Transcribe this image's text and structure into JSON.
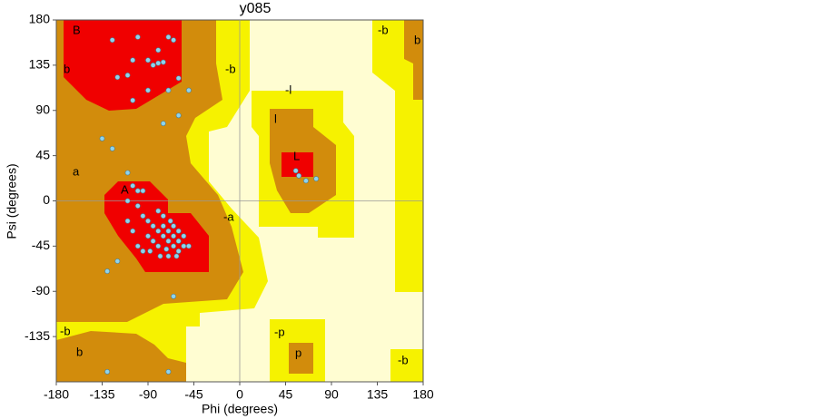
{
  "chart_data": {
    "type": "scatter",
    "title": "y085",
    "x_label": "Phi (degrees)",
    "y_label": "Psi (degrees)",
    "xlim": [
      -180,
      180
    ],
    "ylim": [
      -180,
      180
    ],
    "xticks": [
      -180,
      -135,
      -90,
      -45,
      0,
      45,
      90,
      135,
      180
    ],
    "yticks": [
      180,
      135,
      90,
      45,
      0,
      -45,
      -90,
      -135
    ],
    "color": "#8fd3ec",
    "annotations": [
      "B",
      "b",
      "b",
      "-b",
      "-b",
      "-l",
      "l",
      "L",
      "a",
      "A",
      "-a",
      "-b",
      "b",
      "-p",
      "p",
      "-b"
    ],
    "x": [
      -125,
      -100,
      -70,
      -65,
      -90,
      -85,
      -80,
      -75,
      -120,
      -110,
      -90,
      -70,
      -60,
      -105,
      -80,
      -50,
      -105,
      -60,
      -75,
      -135,
      -125,
      -110,
      -105,
      -100,
      -95,
      -110,
      -100,
      -95,
      -110,
      -105,
      -90,
      -85,
      -80,
      -75,
      -70,
      -65,
      -60,
      -75,
      -80,
      -70,
      -65,
      -60,
      -55,
      -85,
      -90,
      -100,
      -95,
      -70,
      -65,
      -55,
      -75,
      -80,
      -60,
      -50,
      -72,
      -68,
      -62,
      -88,
      -78,
      -120,
      -130,
      -65,
      -130,
      -70,
      55,
      58,
      65,
      75
    ],
    "y": [
      160,
      163,
      163,
      160,
      140,
      135,
      137,
      138,
      123,
      125,
      110,
      110,
      122,
      140,
      150,
      110,
      100,
      85,
      77,
      62,
      52,
      28,
      15,
      10,
      10,
      0,
      -5,
      -15,
      -20,
      -30,
      -20,
      -25,
      -30,
      -35,
      -40,
      -45,
      -40,
      -25,
      -45,
      -30,
      -35,
      -50,
      -45,
      -40,
      -35,
      -45,
      -50,
      -55,
      -25,
      -35,
      -15,
      -10,
      -30,
      -45,
      -48,
      -20,
      -55,
      -50,
      -55,
      -60,
      -70,
      -95,
      -170,
      -170,
      30,
      25,
      20,
      22
    ]
  }
}
